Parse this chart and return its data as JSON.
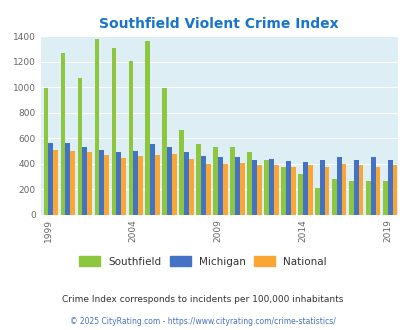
{
  "title": "Southfield Violent Crime Index",
  "years": [
    1999,
    2000,
    2001,
    2002,
    2003,
    2004,
    2005,
    2006,
    2007,
    2008,
    2009,
    2010,
    2011,
    2012,
    2013,
    2014,
    2015,
    2016,
    2017,
    2018,
    2019,
    2020
  ],
  "southfield": [
    990,
    1270,
    1070,
    1380,
    1310,
    1205,
    1360,
    990,
    665,
    550,
    530,
    530,
    490,
    430,
    370,
    315,
    210,
    280,
    265,
    265,
    260,
    0
  ],
  "michigan": [
    560,
    560,
    530,
    510,
    490,
    495,
    555,
    530,
    490,
    460,
    455,
    450,
    430,
    435,
    420,
    415,
    430,
    450,
    430,
    450,
    425,
    0
  ],
  "national": [
    505,
    500,
    490,
    465,
    445,
    460,
    465,
    475,
    435,
    400,
    395,
    405,
    385,
    385,
    370,
    385,
    375,
    400,
    385,
    375,
    385,
    0
  ],
  "southfield_color": "#8dc63f",
  "michigan_color": "#4472c4",
  "national_color": "#faa632",
  "bg_color": "#ddeef5",
  "grid_color": "#ffffff",
  "title_color": "#1874cd",
  "subtitle": "Crime Index corresponds to incidents per 100,000 inhabitants",
  "footer": "© 2025 CityRating.com - https://www.cityrating.com/crime-statistics/",
  "footer_color": "#4472c4",
  "subtitle_color": "#333333",
  "ylim": [
    0,
    1400
  ],
  "yticks": [
    0,
    200,
    400,
    600,
    800,
    1000,
    1200,
    1400
  ],
  "xtick_years": [
    1999,
    2004,
    2009,
    2014,
    2019
  ]
}
